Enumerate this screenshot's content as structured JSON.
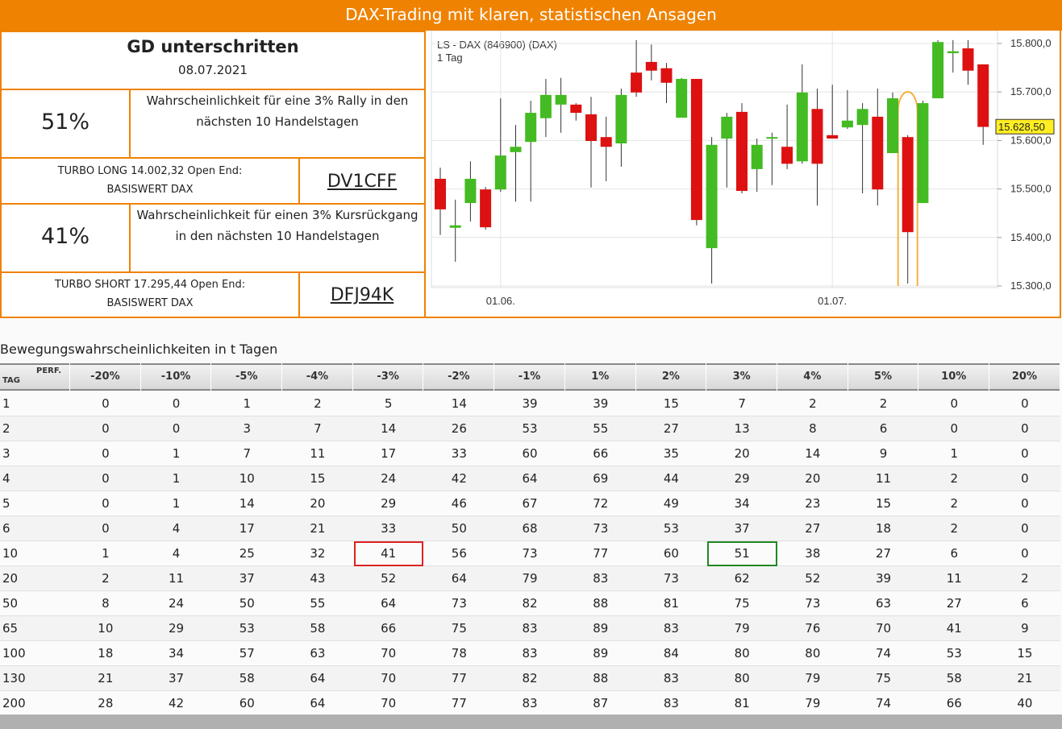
{
  "header": {
    "title": "DAX-Trading mit klaren, statistischen Ansagen"
  },
  "signal": {
    "title": "GD unterschritten",
    "date": "08.07.2021"
  },
  "long": {
    "probability": "51%",
    "text": [
      "Wahrscheinlichkeit für eine 3% Rally in den",
      "nächsten 10 Handelstagen"
    ],
    "product": [
      "TURBO LONG 14.002,32 Open End:",
      "BASISWERT DAX"
    ],
    "code": "DV1CFF"
  },
  "short": {
    "probability": "41%",
    "text": [
      "Wahrscheinlichkeit für einen 3% Kursrückgang",
      "in den nächsten 10 Handelstagen"
    ],
    "product": [
      "TURBO SHORT 17.295,44 Open End:",
      "BASISWERT DAX"
    ],
    "code": "DFJ94K"
  },
  "chart": {
    "type": "candlestick",
    "title": "LS - DAX (846900) (DAX)",
    "subtitle": "1 Tag",
    "up_color": "#44bb22",
    "down_color": "#dd1111",
    "ylim": [
      15300,
      15800
    ],
    "yticks": [
      {
        "value": 15300,
        "label": "15.300,0"
      },
      {
        "value": 15400,
        "label": "15.400,0"
      },
      {
        "value": 15500,
        "label": "15.500,0"
      },
      {
        "value": 15600,
        "label": "15.600,0"
      },
      {
        "value": 15700,
        "label": "15.700,0"
      },
      {
        "value": 15800,
        "label": "15.800,0"
      }
    ],
    "xticks": [
      {
        "index": 4,
        "label": "01.06."
      },
      {
        "index": 26,
        "label": "01.07."
      }
    ],
    "last": {
      "value": 15628.5,
      "label": "15.628,50"
    },
    "candles": [
      {
        "open": 15521,
        "high": 15544,
        "low": 15405,
        "close": 15458
      },
      {
        "open": 15420,
        "high": 15478,
        "low": 15350,
        "close": 15425
      },
      {
        "open": 15471,
        "high": 15557,
        "low": 15433,
        "close": 15521
      },
      {
        "open": 15499,
        "high": 15504,
        "low": 15416,
        "close": 15421
      },
      {
        "open": 15499,
        "high": 15687,
        "low": 15494,
        "close": 15569
      },
      {
        "open": 15576,
        "high": 15632,
        "low": 15474,
        "close": 15587
      },
      {
        "open": 15597,
        "high": 15682,
        "low": 15474,
        "close": 15657
      },
      {
        "open": 15646,
        "high": 15727,
        "low": 15607,
        "close": 15694
      },
      {
        "open": 15674,
        "high": 15729,
        "low": 15616,
        "close": 15694
      },
      {
        "open": 15674,
        "high": 15677,
        "low": 15641,
        "close": 15657
      },
      {
        "open": 15654,
        "high": 15690,
        "low": 15503,
        "close": 15599
      },
      {
        "open": 15607,
        "high": 15649,
        "low": 15516,
        "close": 15587
      },
      {
        "open": 15594,
        "high": 15707,
        "low": 15546,
        "close": 15694
      },
      {
        "open": 15740,
        "high": 15807,
        "low": 15690,
        "close": 15699
      },
      {
        "open": 15762,
        "high": 15798,
        "low": 15724,
        "close": 15744
      },
      {
        "open": 15749,
        "high": 15760,
        "low": 15677,
        "close": 15719
      },
      {
        "open": 15647,
        "high": 15729,
        "low": 15647,
        "close": 15727
      },
      {
        "open": 15727,
        "high": 15727,
        "low": 15425,
        "close": 15436
      },
      {
        "open": 15378,
        "high": 15607,
        "low": 15305,
        "close": 15591
      },
      {
        "open": 15604,
        "high": 15657,
        "low": 15503,
        "close": 15649
      },
      {
        "open": 15659,
        "high": 15677,
        "low": 15491,
        "close": 15496
      },
      {
        "open": 15541,
        "high": 15604,
        "low": 15494,
        "close": 15591
      },
      {
        "open": 15604,
        "high": 15616,
        "low": 15508,
        "close": 15607
      },
      {
        "open": 15587,
        "high": 15674,
        "low": 15541,
        "close": 15552
      },
      {
        "open": 15557,
        "high": 15757,
        "low": 15552,
        "close": 15699
      },
      {
        "open": 15665,
        "high": 15707,
        "low": 15466,
        "close": 15552
      },
      {
        "open": 15611,
        "high": 15715,
        "low": 15604,
        "close": 15604
      },
      {
        "open": 15627,
        "high": 15704,
        "low": 15624,
        "close": 15641
      },
      {
        "open": 15632,
        "high": 15677,
        "low": 15491,
        "close": 15665
      },
      {
        "open": 15649,
        "high": 15707,
        "low": 15466,
        "close": 15499
      },
      {
        "open": 15574,
        "high": 15699,
        "low": 15574,
        "close": 15687
      },
      {
        "open": 15607,
        "high": 15611,
        "low": 15305,
        "close": 15411
      },
      {
        "open": 15471,
        "high": 15682,
        "low": 15471,
        "close": 15677
      },
      {
        "open": 15687,
        "high": 15807,
        "low": 15687,
        "close": 15803
      },
      {
        "open": 15780,
        "high": 15807,
        "low": 15740,
        "close": 15784
      },
      {
        "open": 15790,
        "high": 15807,
        "low": 15715,
        "close": 15744
      },
      {
        "open": 15757,
        "high": 15757,
        "low": 15591,
        "close": 15628
      }
    ],
    "highlight_index": 31
  },
  "table": {
    "title": "Bewegungswahrscheinlichkeiten in t Tagen",
    "corner_top": "PERF.",
    "corner_bottom": "TAG",
    "columns": [
      "-20%",
      "-10%",
      "-5%",
      "-4%",
      "-3%",
      "-2%",
      "-1%",
      "1%",
      "2%",
      "3%",
      "4%",
      "5%",
      "10%",
      "20%"
    ],
    "highlights": [
      {
        "row": 6,
        "col": 4,
        "color": "#dd2222"
      },
      {
        "row": 6,
        "col": 9,
        "color": "#228822"
      }
    ],
    "rows": [
      {
        "tag": 1,
        "values": [
          0,
          0,
          1,
          2,
          5,
          14,
          39,
          39,
          15,
          7,
          2,
          2,
          0,
          0
        ]
      },
      {
        "tag": 2,
        "values": [
          0,
          0,
          3,
          7,
          14,
          26,
          53,
          55,
          27,
          13,
          8,
          6,
          0,
          0
        ]
      },
      {
        "tag": 3,
        "values": [
          0,
          1,
          7,
          11,
          17,
          33,
          60,
          66,
          35,
          20,
          14,
          9,
          1,
          0
        ]
      },
      {
        "tag": 4,
        "values": [
          0,
          1,
          10,
          15,
          24,
          42,
          64,
          69,
          44,
          29,
          20,
          11,
          2,
          0
        ]
      },
      {
        "tag": 5,
        "values": [
          0,
          1,
          14,
          20,
          29,
          46,
          67,
          72,
          49,
          34,
          23,
          15,
          2,
          0
        ]
      },
      {
        "tag": 6,
        "values": [
          0,
          4,
          17,
          21,
          33,
          50,
          68,
          73,
          53,
          37,
          27,
          18,
          2,
          0
        ]
      },
      {
        "tag": 10,
        "values": [
          1,
          4,
          25,
          32,
          41,
          56,
          73,
          77,
          60,
          51,
          38,
          27,
          6,
          0
        ]
      },
      {
        "tag": 20,
        "values": [
          2,
          11,
          37,
          43,
          52,
          64,
          79,
          83,
          73,
          62,
          52,
          39,
          11,
          2
        ]
      },
      {
        "tag": 50,
        "values": [
          8,
          24,
          50,
          55,
          64,
          73,
          82,
          88,
          81,
          75,
          73,
          63,
          27,
          6
        ]
      },
      {
        "tag": 65,
        "values": [
          10,
          29,
          53,
          58,
          66,
          75,
          83,
          89,
          83,
          79,
          76,
          70,
          41,
          9
        ]
      },
      {
        "tag": 100,
        "values": [
          18,
          34,
          57,
          63,
          70,
          78,
          83,
          89,
          84,
          80,
          80,
          74,
          53,
          15
        ]
      },
      {
        "tag": 130,
        "values": [
          21,
          37,
          58,
          64,
          70,
          77,
          82,
          88,
          83,
          80,
          79,
          75,
          58,
          21
        ]
      },
      {
        "tag": 200,
        "values": [
          28,
          42,
          60,
          64,
          70,
          77,
          83,
          87,
          83,
          81,
          79,
          74,
          66,
          40
        ]
      }
    ]
  }
}
